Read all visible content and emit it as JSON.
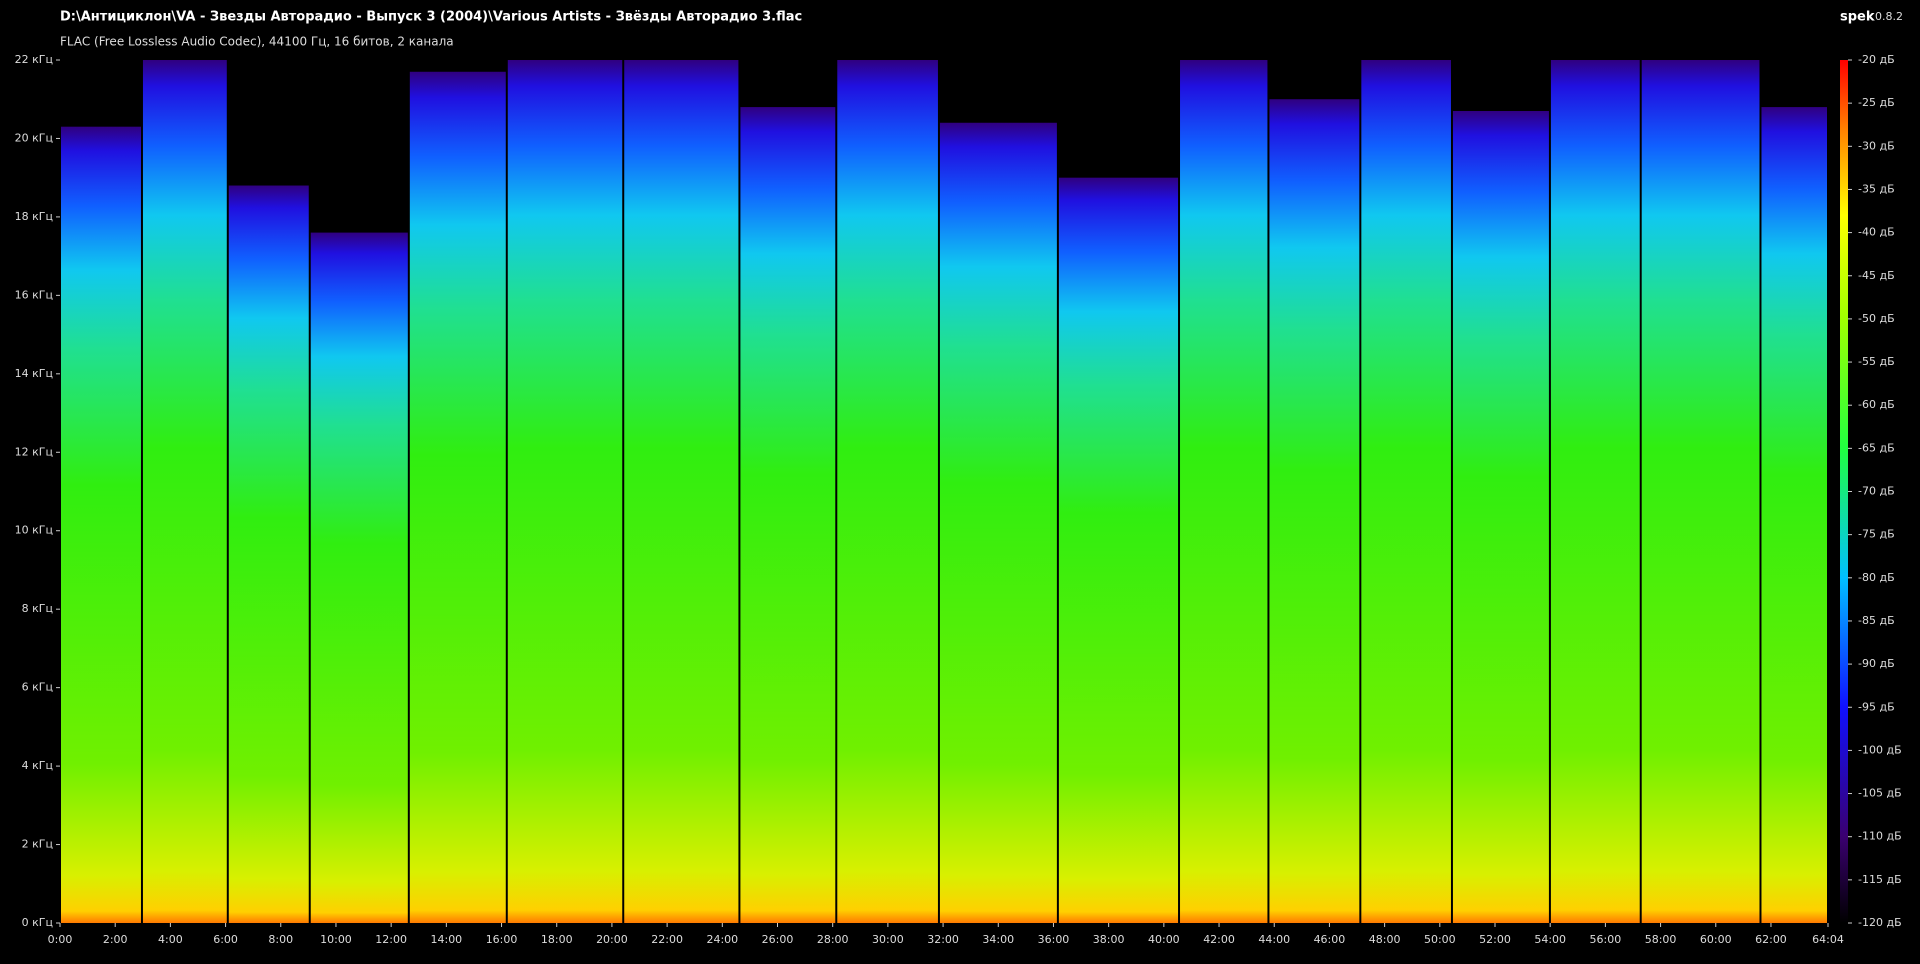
{
  "header": {
    "title": "D:\\Антициклон\\VA - Звезды Авторадио - Выпуск 3 (2004)\\Various Artists - Звёзды Авторадио 3.flac",
    "format": "FLAC (Free Lossless Audio Codec), 44100 Гц, 16 битов, 2 канала",
    "app": "spek",
    "version": "0.8.2"
  },
  "chart_data": {
    "type": "spectrogram",
    "xlim": [
      0,
      64.0667
    ],
    "ylim": [
      0,
      22
    ],
    "xticks": [
      {
        "value": 0,
        "label": "0:00"
      },
      {
        "value": 2,
        "label": "2:00"
      },
      {
        "value": 4,
        "label": "4:00"
      },
      {
        "value": 6,
        "label": "6:00"
      },
      {
        "value": 8,
        "label": "8:00"
      },
      {
        "value": 10,
        "label": "10:00"
      },
      {
        "value": 12,
        "label": "12:00"
      },
      {
        "value": 14,
        "label": "14:00"
      },
      {
        "value": 16,
        "label": "16:00"
      },
      {
        "value": 18,
        "label": "18:00"
      },
      {
        "value": 20,
        "label": "20:00"
      },
      {
        "value": 22,
        "label": "22:00"
      },
      {
        "value": 24,
        "label": "24:00"
      },
      {
        "value": 26,
        "label": "26:00"
      },
      {
        "value": 28,
        "label": "28:00"
      },
      {
        "value": 30,
        "label": "30:00"
      },
      {
        "value": 32,
        "label": "32:00"
      },
      {
        "value": 34,
        "label": "34:00"
      },
      {
        "value": 36,
        "label": "36:00"
      },
      {
        "value": 38,
        "label": "38:00"
      },
      {
        "value": 40,
        "label": "40:00"
      },
      {
        "value": 42,
        "label": "42:00"
      },
      {
        "value": 44,
        "label": "44:00"
      },
      {
        "value": 46,
        "label": "46:00"
      },
      {
        "value": 48,
        "label": "48:00"
      },
      {
        "value": 50,
        "label": "50:00"
      },
      {
        "value": 52,
        "label": "52:00"
      },
      {
        "value": 54,
        "label": "54:00"
      },
      {
        "value": 56,
        "label": "56:00"
      },
      {
        "value": 58,
        "label": "58:00"
      },
      {
        "value": 60,
        "label": "60:00"
      },
      {
        "value": 62,
        "label": "62:00"
      },
      {
        "value": 64.0667,
        "label": "64:04"
      }
    ],
    "yticks": [
      {
        "value": 0,
        "label": "0 кГц"
      },
      {
        "value": 2,
        "label": "2 кГц"
      },
      {
        "value": 4,
        "label": "4 кГц"
      },
      {
        "value": 6,
        "label": "6 кГц"
      },
      {
        "value": 8,
        "label": "8 кГц"
      },
      {
        "value": 10,
        "label": "10 кГц"
      },
      {
        "value": 12,
        "label": "12 кГц"
      },
      {
        "value": 14,
        "label": "14 кГц"
      },
      {
        "value": 16,
        "label": "16 кГц"
      },
      {
        "value": 18,
        "label": "18 кГц"
      },
      {
        "value": 20,
        "label": "20 кГц"
      },
      {
        "value": 22,
        "label": "22 кГц"
      }
    ],
    "colorbar": {
      "lim": [
        -120,
        -20
      ],
      "ticks": [
        {
          "value": -20,
          "label": "-20 дБ"
        },
        {
          "value": -25,
          "label": "-25 дБ"
        },
        {
          "value": -30,
          "label": "-30 дБ"
        },
        {
          "value": -35,
          "label": "-35 дБ"
        },
        {
          "value": -40,
          "label": "-40 дБ"
        },
        {
          "value": -45,
          "label": "-45 дБ"
        },
        {
          "value": -50,
          "label": "-50 дБ"
        },
        {
          "value": -55,
          "label": "-55 дБ"
        },
        {
          "value": -60,
          "label": "-60 дБ"
        },
        {
          "value": -65,
          "label": "-65 дБ"
        },
        {
          "value": -70,
          "label": "-70 дБ"
        },
        {
          "value": -75,
          "label": "-75 дБ"
        },
        {
          "value": -80,
          "label": "-80 дБ"
        },
        {
          "value": -85,
          "label": "-85 дБ"
        },
        {
          "value": -90,
          "label": "-90 дБ"
        },
        {
          "value": -95,
          "label": "-95 дБ"
        },
        {
          "value": -100,
          "label": "-100 дБ"
        },
        {
          "value": -105,
          "label": "-105 дБ"
        },
        {
          "value": -110,
          "label": "-110 дБ"
        },
        {
          "value": -115,
          "label": "-115 дБ"
        },
        {
          "value": -120,
          "label": "-120 дБ"
        }
      ]
    },
    "segments": [
      {
        "start": 0,
        "end": 2.97,
        "cutoff": 20.3
      },
      {
        "start": 2.97,
        "end": 6.08,
        "cutoff": 22
      },
      {
        "start": 6.08,
        "end": 9.05,
        "cutoff": 18.8
      },
      {
        "start": 9.05,
        "end": 12.64,
        "cutoff": 17.6
      },
      {
        "start": 12.64,
        "end": 16.19,
        "cutoff": 21.7
      },
      {
        "start": 16.19,
        "end": 20.41,
        "cutoff": 22
      },
      {
        "start": 20.41,
        "end": 24.62,
        "cutoff": 22
      },
      {
        "start": 24.62,
        "end": 28.13,
        "cutoff": 20.8
      },
      {
        "start": 28.13,
        "end": 31.85,
        "cutoff": 22
      },
      {
        "start": 31.85,
        "end": 36.16,
        "cutoff": 20.4
      },
      {
        "start": 36.16,
        "end": 40.55,
        "cutoff": 19
      },
      {
        "start": 40.55,
        "end": 43.79,
        "cutoff": 22
      },
      {
        "start": 43.79,
        "end": 47.12,
        "cutoff": 21
      },
      {
        "start": 47.12,
        "end": 50.44,
        "cutoff": 22
      },
      {
        "start": 50.44,
        "end": 53.99,
        "cutoff": 20.7
      },
      {
        "start": 53.99,
        "end": 57.28,
        "cutoff": 22
      },
      {
        "start": 57.28,
        "end": 61.62,
        "cutoff": 22
      },
      {
        "start": 61.62,
        "end": 64.0667,
        "cutoff": 20.8
      }
    ]
  }
}
